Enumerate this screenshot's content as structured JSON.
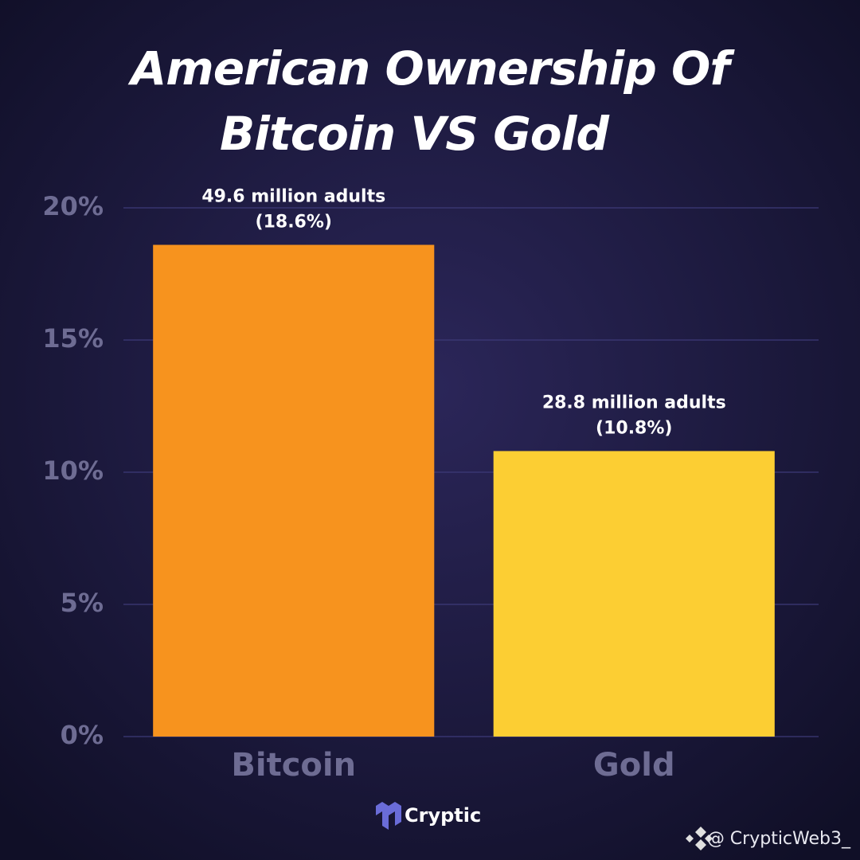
{
  "chart_data": {
    "type": "bar",
    "title": [
      "American Ownership Of",
      "Bitcoin VS Gold"
    ],
    "categories": [
      "Bitcoin",
      "Gold"
    ],
    "values": [
      18.6,
      10.8
    ],
    "value_labels": [
      "(18.6%)",
      "(10.8%)"
    ],
    "count_labels": [
      "49.6 million adults",
      "28.8 million adults"
    ],
    "colors": [
      "#f7931e",
      "#fcce33"
    ],
    "ylim": [
      0,
      20
    ],
    "yticks": [
      {
        "value": 0,
        "label": "0%"
      },
      {
        "value": 5,
        "label": "5%"
      },
      {
        "value": 10,
        "label": "10%"
      },
      {
        "value": 15,
        "label": "15%"
      },
      {
        "value": 20,
        "label": "20%"
      }
    ],
    "grid": true
  },
  "brand": "Cryptic",
  "watermark": "@ CrypticWeb3_"
}
